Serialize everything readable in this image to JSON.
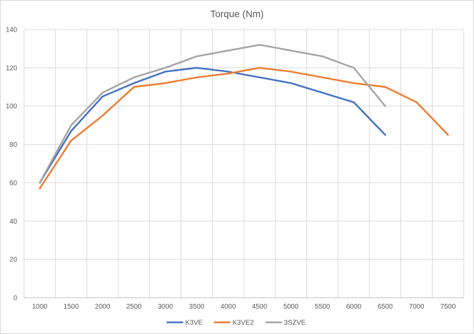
{
  "chart_data": {
    "type": "line",
    "title": "Torque (Nm)",
    "xlabel": "",
    "ylabel": "",
    "categories": [
      "1000",
      "1500",
      "2000",
      "2500",
      "3000",
      "3500",
      "4000",
      "4500",
      "5000",
      "5500",
      "6000",
      "6500",
      "7000",
      "7500"
    ],
    "ylim": [
      0,
      140
    ],
    "yticks": [
      0,
      20,
      40,
      60,
      80,
      100,
      120,
      140
    ],
    "grid": true,
    "legend_position": "bottom",
    "series": [
      {
        "name": "K3VE",
        "color": "#4472c4",
        "values": [
          60,
          87,
          105,
          112,
          118,
          120,
          118,
          115,
          112,
          107,
          102,
          85,
          null,
          null
        ]
      },
      {
        "name": "K3VE2",
        "color": "#ed7d31",
        "values": [
          57,
          82,
          95,
          110,
          112,
          115,
          117,
          120,
          118,
          115,
          112,
          110,
          102,
          85
        ]
      },
      {
        "name": "3SZVE",
        "color": "#a5a5a5",
        "values": [
          60,
          90,
          107,
          115,
          120,
          126,
          129,
          132,
          129,
          126,
          120,
          100,
          null,
          null
        ]
      }
    ]
  }
}
